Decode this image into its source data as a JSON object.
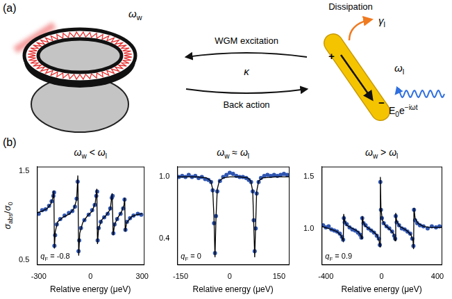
{
  "diagram": {
    "panel_label": "(a)",
    "resonator_frequency": [
      {
        "text": "ω",
        "style": "italic"
      },
      {
        "text": "w",
        "style": "sub"
      }
    ],
    "upper_arrow": "WGM excitation",
    "coupling": [
      {
        "text": "κ",
        "style": "italic"
      }
    ],
    "lower_arrow": "Back action",
    "dissipation": "Dissipation",
    "damping": [
      {
        "text": "γ",
        "style": "italic"
      },
      {
        "text": "l",
        "style": "sub"
      }
    ],
    "plasmon_frequency": [
      {
        "text": "ω",
        "style": "italic"
      },
      {
        "text": "l",
        "style": "sub"
      }
    ],
    "charges": [
      "+",
      "−"
    ],
    "field": [
      {
        "text": "E"
      },
      {
        "text": "0",
        "style": "sub"
      },
      {
        "text": "e"
      },
      {
        "text": "−iωt",
        "style": "sup"
      }
    ]
  },
  "charts_panel_label": "(b)",
  "chart_data": [
    {
      "type": "scatter",
      "title": [
        {
          "text": "ω",
          "style": "italic"
        },
        {
          "text": "w",
          "style": "sub"
        },
        {
          "text": " < "
        },
        {
          "text": "ω",
          "style": "italic"
        },
        {
          "text": "l",
          "style": "sub"
        }
      ],
      "xlabel": "Relative energy (μeV)",
      "ylabel": [
        {
          "text": "σ",
          "style": "italic"
        },
        {
          "text": "abs",
          "style": "sub"
        },
        {
          "text": "/"
        },
        {
          "text": "σ",
          "style": "italic"
        },
        {
          "text": "0",
          "style": "sub"
        }
      ],
      "annotation": [
        {
          "text": "q",
          "style": "italic"
        },
        {
          "text": "F",
          "style": "sub"
        },
        {
          "text": " = -0.8"
        }
      ],
      "xlim": [
        -310,
        310
      ],
      "xticks": [
        -300,
        0,
        300
      ],
      "ylim": [
        0.45,
        1.55
      ],
      "yticks": [
        0.5,
        1.5
      ],
      "grid": false,
      "series": [
        {
          "type": "scatter",
          "marker": "circle",
          "color": "#2f55b0",
          "x": [
            -300,
            -280,
            -260,
            -240,
            -225,
            -215,
            -211,
            -209,
            -205,
            -195,
            -175,
            -150,
            -125,
            -105,
            -90,
            -80,
            -74,
            -69,
            -65,
            -55,
            -35,
            -10,
            10,
            25,
            34,
            39,
            42,
            48,
            60,
            80,
            100,
            115,
            124,
            129,
            133,
            140,
            155,
            175,
            190,
            198,
            203,
            212,
            230,
            250,
            275,
            295
          ],
          "values": [
            1.02,
            1.06,
            1.07,
            1.11,
            1.16,
            1.22,
            1.26,
            0.66,
            0.78,
            0.9,
            0.96,
            1.0,
            1.03,
            1.05,
            1.1,
            1.19,
            1.38,
            0.6,
            0.72,
            0.86,
            0.95,
            1.01,
            1.06,
            1.12,
            1.22,
            1.27,
            0.72,
            0.86,
            0.93,
            0.98,
            1.02,
            1.08,
            1.2,
            1.22,
            0.8,
            0.9,
            0.96,
            1.02,
            1.08,
            1.18,
            0.84,
            0.93,
            0.97,
            1.0,
            1.02,
            1.01
          ]
        },
        {
          "type": "line",
          "line_style": "solid",
          "color": "#000000",
          "x": [
            -310,
            -280,
            -250,
            -230,
            -218,
            -212,
            -209,
            -204,
            -190,
            -160,
            -120,
            -95,
            -80,
            -73,
            -68,
            -62,
            -45,
            -20,
            10,
            28,
            37,
            41,
            47,
            65,
            90,
            115,
            126,
            132,
            140,
            160,
            180,
            195,
            199,
            202,
            210,
            240,
            270,
            300
          ],
          "values": [
            1.03,
            1.05,
            1.08,
            1.13,
            1.2,
            1.28,
            0.63,
            0.82,
            0.93,
            0.98,
            1.02,
            1.08,
            1.18,
            1.45,
            0.55,
            0.8,
            0.92,
            0.99,
            1.05,
            1.14,
            1.3,
            0.68,
            0.85,
            0.95,
            1.0,
            1.07,
            1.25,
            0.78,
            0.9,
            0.98,
            1.04,
            1.12,
            1.2,
            0.82,
            0.92,
            0.99,
            1.01,
            1.02
          ]
        }
      ]
    },
    {
      "type": "scatter",
      "title": [
        {
          "text": "ω",
          "style": "italic"
        },
        {
          "text": "w",
          "style": "sub"
        },
        {
          "text": " ≈ "
        },
        {
          "text": "ω",
          "style": "italic"
        },
        {
          "text": "l",
          "style": "sub"
        }
      ],
      "xlabel": "Relative energy (μeV)",
      "annotation": [
        {
          "text": "q",
          "style": "italic"
        },
        {
          "text": "F",
          "style": "sub"
        },
        {
          "text": " = 0"
        }
      ],
      "xlim": [
        -160,
        180
      ],
      "xticks": [
        -150,
        0,
        150
      ],
      "ylim": [
        0.15,
        1.1
      ],
      "yticks": [
        0.4,
        {
          "value": 1,
          "label": "1.0"
        }
      ],
      "grid": false,
      "series": [
        {
          "type": "scatter",
          "marker": "circle",
          "color": "#2f55b0",
          "x": [
            -155,
            -145,
            -135,
            -125,
            -115,
            -105,
            -95,
            -85,
            -75,
            -65,
            -57,
            -52,
            -48,
            -45,
            -42,
            -38,
            -30,
            -20,
            -10,
            0,
            10,
            20,
            30,
            40,
            50,
            58,
            65,
            70,
            73,
            76,
            79,
            82,
            88,
            95,
            105,
            115,
            125,
            135,
            145,
            155,
            165,
            175
          ],
          "values": [
            1.0,
            1.01,
            1.0,
            1.02,
            1.0,
            1.01,
            0.99,
            1.0,
            0.98,
            0.97,
            0.95,
            0.87,
            0.55,
            0.26,
            0.62,
            0.86,
            0.96,
            1.0,
            1.02,
            1.04,
            1.03,
            1.01,
            1.0,
            1.0,
            0.99,
            0.97,
            0.95,
            0.86,
            0.58,
            0.28,
            0.5,
            0.84,
            0.95,
            0.99,
            1.01,
            1.02,
            1.01,
            1.02,
            1.01,
            1.02,
            1.03,
            1.02
          ]
        },
        {
          "type": "line",
          "line_style": "solid",
          "color": "#000000",
          "x": [
            -160,
            -100,
            -70,
            -58,
            -52,
            -48,
            -45,
            -42,
            -38,
            -32,
            -20,
            0,
            30,
            55,
            64,
            70,
            73,
            76,
            79,
            82,
            88,
            100,
            140,
            180
          ],
          "values": [
            1.0,
            1.0,
            0.99,
            0.96,
            0.88,
            0.6,
            0.22,
            0.6,
            0.88,
            0.96,
            0.99,
            1.0,
            1.0,
            0.99,
            0.96,
            0.86,
            0.55,
            0.22,
            0.55,
            0.86,
            0.96,
            0.99,
            1.0,
            1.0
          ]
        }
      ]
    },
    {
      "type": "scatter",
      "title": [
        {
          "text": "ω",
          "style": "italic"
        },
        {
          "text": "w",
          "style": "sub"
        },
        {
          "text": " > "
        },
        {
          "text": "ω",
          "style": "italic"
        },
        {
          "text": "l",
          "style": "sub"
        }
      ],
      "xlabel": "Relative energy (μeV)",
      "annotation": [
        {
          "text": "q",
          "style": "italic"
        },
        {
          "text": "F",
          "style": "sub"
        },
        {
          "text": " = 0.9"
        }
      ],
      "xlim": [
        -430,
        430
      ],
      "xticks": [
        -400,
        0,
        400
      ],
      "ylim": [
        0.65,
        1.6
      ],
      "yticks": [
        {
          "value": 1,
          "label": "1.0"
        },
        1.5
      ],
      "grid": false,
      "series": [
        {
          "type": "scatter",
          "marker": "circle",
          "color": "#2f55b0",
          "x": [
            -420,
            -400,
            -380,
            -360,
            -340,
            -320,
            -300,
            -285,
            -276,
            -271,
            -265,
            -250,
            -230,
            -210,
            -190,
            -170,
            -155,
            -145,
            -139,
            -130,
            -115,
            -95,
            -75,
            -55,
            -35,
            -20,
            -13,
            -9,
            -5,
            2,
            15,
            35,
            55,
            75,
            90,
            97,
            101,
            108,
            125,
            145,
            165,
            185,
            205,
            220,
            228,
            232,
            240,
            255,
            275,
            300,
            330,
            360,
            390,
            415
          ],
          "values": [
            1.03,
            1.01,
            1.02,
            0.99,
            0.98,
            0.97,
            0.95,
            0.92,
            0.89,
            1.1,
            1.06,
            1.04,
            1.01,
            0.99,
            0.98,
            0.96,
            0.94,
            0.91,
            1.1,
            1.05,
            1.03,
            1.0,
            0.98,
            0.96,
            0.93,
            0.9,
            0.84,
            1.45,
            1.18,
            1.1,
            1.05,
            1.02,
            1.0,
            0.97,
            0.93,
            0.9,
            1.12,
            1.06,
            1.03,
            1.0,
            0.99,
            0.97,
            0.95,
            0.9,
            0.83,
            1.18,
            1.08,
            1.05,
            1.03,
            1.02,
            1.0,
            1.02,
            1.01,
            1.02
          ]
        },
        {
          "type": "line",
          "line_style": "solid",
          "color": "#000000",
          "x": [
            -430,
            -380,
            -320,
            -290,
            -275,
            -272,
            -265,
            -250,
            -210,
            -170,
            -148,
            -142,
            -139,
            -132,
            -115,
            -70,
            -35,
            -18,
            -12,
            -9,
            -5,
            5,
            25,
            60,
            85,
            97,
            101,
            108,
            130,
            180,
            210,
            225,
            229,
            232,
            240,
            260,
            300,
            350,
            430
          ],
          "values": [
            1.02,
            1.0,
            0.97,
            0.93,
            0.88,
            1.14,
            1.07,
            1.03,
            1.0,
            0.97,
            0.93,
            0.9,
            1.12,
            1.06,
            1.02,
            0.98,
            0.94,
            0.88,
            0.82,
            1.5,
            1.2,
            1.08,
            1.03,
            0.99,
            0.95,
            0.88,
            1.15,
            1.07,
            1.02,
            0.98,
            0.94,
            0.88,
            0.8,
            1.2,
            1.1,
            1.05,
            1.02,
            1.01,
            1.01
          ]
        }
      ]
    }
  ]
}
